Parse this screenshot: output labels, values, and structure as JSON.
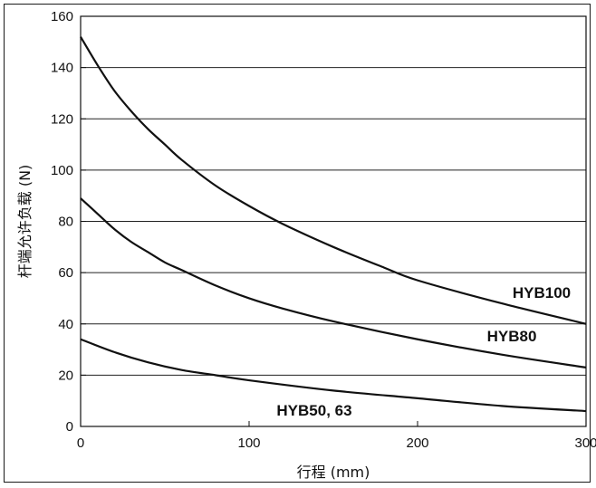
{
  "chart_data": {
    "type": "line",
    "title": "",
    "xlabel": "行程 (mm)",
    "ylabel": "杆端允许负载 (N)",
    "xlim": [
      0,
      300
    ],
    "ylim": [
      0,
      160
    ],
    "xticks": [
      0,
      100,
      200,
      300
    ],
    "yticks": [
      0,
      20,
      40,
      60,
      80,
      100,
      120,
      140,
      160
    ],
    "grid": "horizontal",
    "series": [
      {
        "name": "HYB100",
        "x": [
          0,
          10,
          20,
          30,
          40,
          50,
          60,
          80,
          100,
          120,
          150,
          180,
          200,
          250,
          300
        ],
        "y": [
          152,
          141,
          131,
          123,
          116,
          110,
          104,
          94,
          86,
          79,
          70,
          62,
          57,
          48,
          40
        ]
      },
      {
        "name": "HYB80",
        "x": [
          0,
          10,
          20,
          30,
          40,
          50,
          60,
          80,
          100,
          120,
          150,
          200,
          250,
          300
        ],
        "y": [
          89,
          83,
          77,
          72,
          68,
          64,
          61,
          55,
          50,
          46,
          41,
          34,
          28,
          23
        ]
      },
      {
        "name": "HYB50, 63",
        "x": [
          0,
          20,
          40,
          60,
          80,
          100,
          150,
          200,
          250,
          300
        ],
        "y": [
          34,
          29,
          25,
          22,
          20,
          18,
          14,
          11,
          8,
          6
        ]
      }
    ]
  }
}
